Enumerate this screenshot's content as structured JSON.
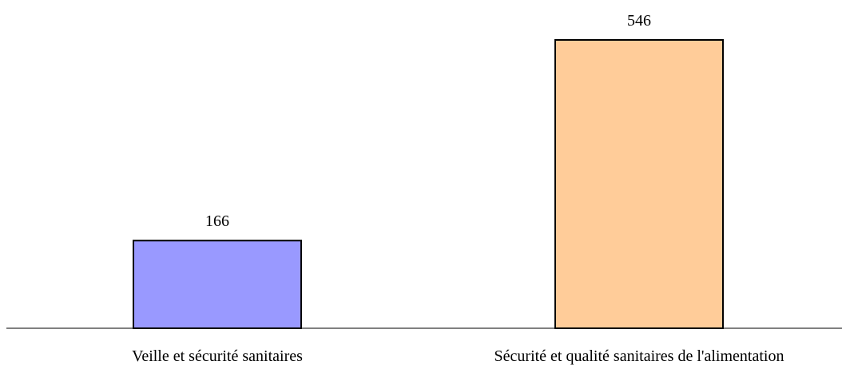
{
  "chart_data": {
    "type": "bar",
    "categories": [
      "Veille et sécurité sanitaires",
      "Sécurité et qualité sanitaires de l'alimentation"
    ],
    "values": [
      166,
      546
    ],
    "value_labels": [
      "166",
      "546"
    ],
    "colors": [
      "#9999ff",
      "#ffcc99"
    ],
    "title": "",
    "xlabel": "",
    "ylabel": "",
    "ylim": [
      0,
      546
    ],
    "grid": false,
    "legend": "none"
  }
}
